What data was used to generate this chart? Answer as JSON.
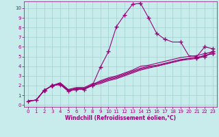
{
  "xlabel": "Windchill (Refroidissement éolien,°C)",
  "bg_color": "#c8ecec",
  "grid_color": "#a0d0d0",
  "line_color": "#990077",
  "xlim": [
    -0.5,
    23.5
  ],
  "ylim": [
    -0.2,
    10.7
  ],
  "xticks": [
    0,
    1,
    2,
    3,
    4,
    5,
    6,
    7,
    8,
    9,
    10,
    11,
    12,
    13,
    14,
    15,
    16,
    17,
    18,
    19,
    20,
    21,
    22,
    23
  ],
  "yticks": [
    0,
    1,
    2,
    3,
    4,
    5,
    6,
    7,
    8,
    9,
    10
  ],
  "lines": [
    {
      "x": [
        0,
        1,
        2,
        3,
        4,
        5,
        6,
        7,
        8,
        9,
        10,
        11,
        12,
        13,
        14,
        15,
        16,
        17,
        18,
        19,
        20,
        21,
        22,
        23
      ],
      "y": [
        0.4,
        0.5,
        1.5,
        2.0,
        2.1,
        1.4,
        1.6,
        1.6,
        2.0,
        3.9,
        5.5,
        8.1,
        9.3,
        10.4,
        10.5,
        9.0,
        7.4,
        6.8,
        6.5,
        6.5,
        5.1,
        5.0,
        6.0,
        5.8
      ],
      "marker_x": [
        0,
        1,
        2,
        3,
        4,
        5,
        6,
        7,
        8,
        9,
        10,
        11,
        12,
        13,
        14,
        15,
        16,
        17,
        19,
        21,
        22,
        23
      ],
      "marker_y": [
        0.4,
        0.5,
        1.5,
        2.0,
        2.1,
        1.4,
        1.6,
        1.6,
        2.0,
        3.9,
        5.5,
        8.1,
        9.3,
        10.4,
        10.5,
        9.0,
        7.4,
        6.8,
        6.5,
        5.0,
        6.0,
        5.8
      ]
    },
    {
      "x": [
        0,
        1,
        2,
        3,
        4,
        5,
        6,
        7,
        8,
        9,
        10,
        11,
        12,
        13,
        14,
        15,
        16,
        17,
        18,
        19,
        20,
        21,
        22,
        23
      ],
      "y": [
        0.4,
        0.5,
        1.5,
        2.0,
        2.2,
        1.5,
        1.7,
        1.7,
        2.1,
        2.5,
        2.8,
        3.0,
        3.3,
        3.6,
        4.0,
        4.1,
        4.3,
        4.5,
        4.7,
        4.9,
        5.0,
        5.1,
        5.3,
        5.5
      ],
      "marker_x": [
        2,
        3,
        8,
        22,
        23
      ],
      "marker_y": [
        1.5,
        2.0,
        2.1,
        5.3,
        5.5
      ]
    },
    {
      "x": [
        0,
        1,
        2,
        3,
        4,
        5,
        6,
        7,
        8,
        9,
        10,
        11,
        12,
        13,
        14,
        15,
        16,
        17,
        18,
        19,
        20,
        21,
        22,
        23
      ],
      "y": [
        0.4,
        0.5,
        1.5,
        2.0,
        2.2,
        1.5,
        1.7,
        1.7,
        2.0,
        2.4,
        2.7,
        2.9,
        3.2,
        3.5,
        3.8,
        4.0,
        4.1,
        4.3,
        4.5,
        4.7,
        4.8,
        4.9,
        5.1,
        5.3
      ],
      "marker_x": [
        2,
        3,
        21,
        22,
        23
      ],
      "marker_y": [
        1.5,
        2.0,
        4.9,
        5.1,
        5.3
      ]
    },
    {
      "x": [
        0,
        1,
        2,
        3,
        4,
        5,
        6,
        7,
        8,
        9,
        10,
        11,
        12,
        13,
        14,
        15,
        16,
        17,
        18,
        19,
        20,
        21,
        22,
        23
      ],
      "y": [
        0.4,
        0.5,
        1.5,
        2.0,
        2.3,
        1.6,
        1.8,
        1.8,
        2.2,
        2.3,
        2.6,
        2.8,
        3.1,
        3.4,
        3.7,
        3.9,
        4.0,
        4.2,
        4.4,
        4.6,
        4.8,
        4.9,
        5.1,
        5.3
      ],
      "marker_x": [
        2,
        3,
        21,
        22,
        23
      ],
      "marker_y": [
        1.5,
        2.0,
        4.9,
        5.1,
        5.3
      ]
    },
    {
      "x": [
        0,
        1,
        2,
        3,
        4,
        5,
        6,
        7,
        8,
        9,
        10,
        11,
        12,
        13,
        14,
        15,
        16,
        17,
        18,
        19,
        20,
        21,
        22,
        23
      ],
      "y": [
        0.4,
        0.5,
        1.5,
        2.0,
        2.2,
        1.5,
        1.7,
        1.7,
        2.0,
        2.2,
        2.5,
        2.7,
        3.0,
        3.3,
        3.6,
        3.8,
        4.0,
        4.2,
        4.4,
        4.6,
        4.7,
        4.8,
        5.0,
        5.5
      ],
      "marker_x": [
        2,
        3,
        21,
        22,
        23
      ],
      "marker_y": [
        1.5,
        2.0,
        4.8,
        5.0,
        5.5
      ]
    }
  ]
}
